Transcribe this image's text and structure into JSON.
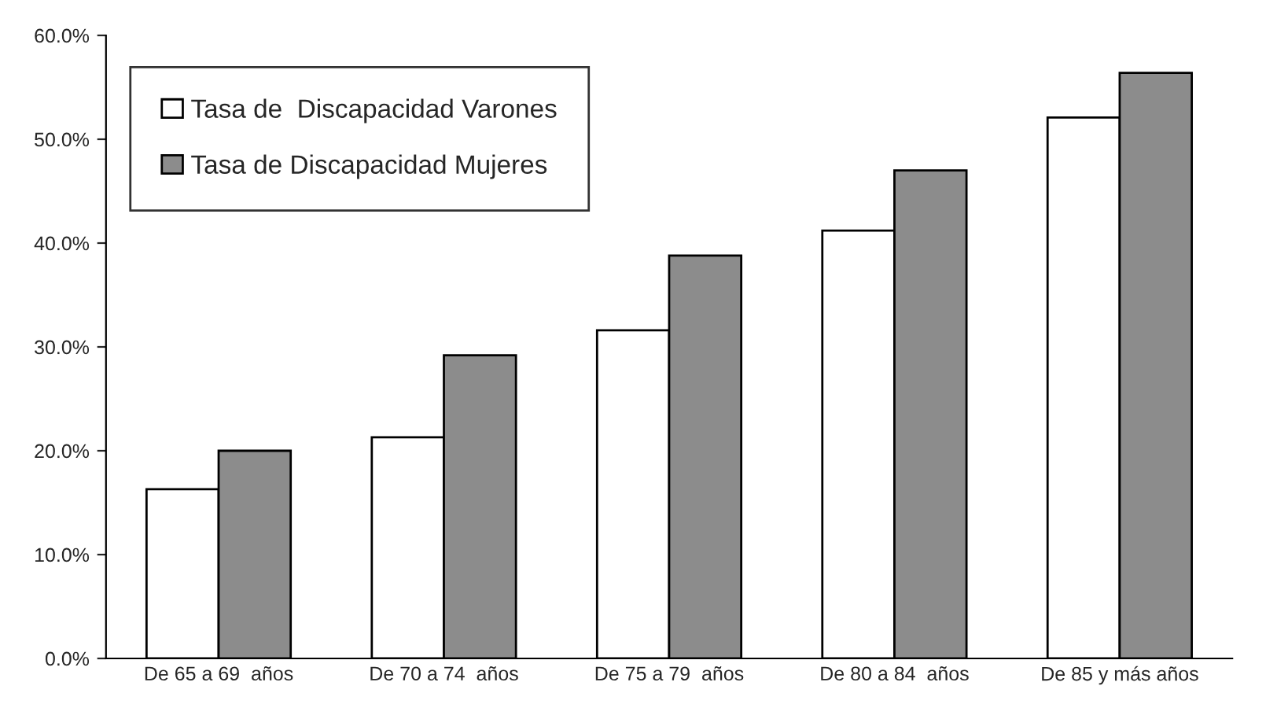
{
  "chart_data": {
    "type": "bar",
    "categories": [
      "De 65 a 69  años",
      "De 70 a 74  años",
      "De 75 a 79  años",
      "De 80 a 84  años",
      "De 85 y más años"
    ],
    "series": [
      {
        "name": "Tasa de  Discapacidad Varones",
        "color": "#ffffff",
        "values": [
          16.3,
          21.3,
          31.6,
          41.2,
          52.1
        ]
      },
      {
        "name": "Tasa de Discapacidad Mujeres",
        "color": "#8c8c8c",
        "values": [
          20.0,
          29.2,
          38.8,
          47.0,
          56.4
        ]
      }
    ],
    "ylim": [
      0,
      60
    ],
    "yticks": [
      {
        "value": 0,
        "label": "0.0%"
      },
      {
        "value": 10,
        "label": "10.0%"
      },
      {
        "value": 20,
        "label": "20.0%"
      },
      {
        "value": 30,
        "label": "30.0%"
      },
      {
        "value": 40,
        "label": "40.0%"
      },
      {
        "value": 50,
        "label": "50.0%"
      },
      {
        "value": 60,
        "label": "60.0%"
      }
    ],
    "grid": false,
    "legend": "top left"
  }
}
